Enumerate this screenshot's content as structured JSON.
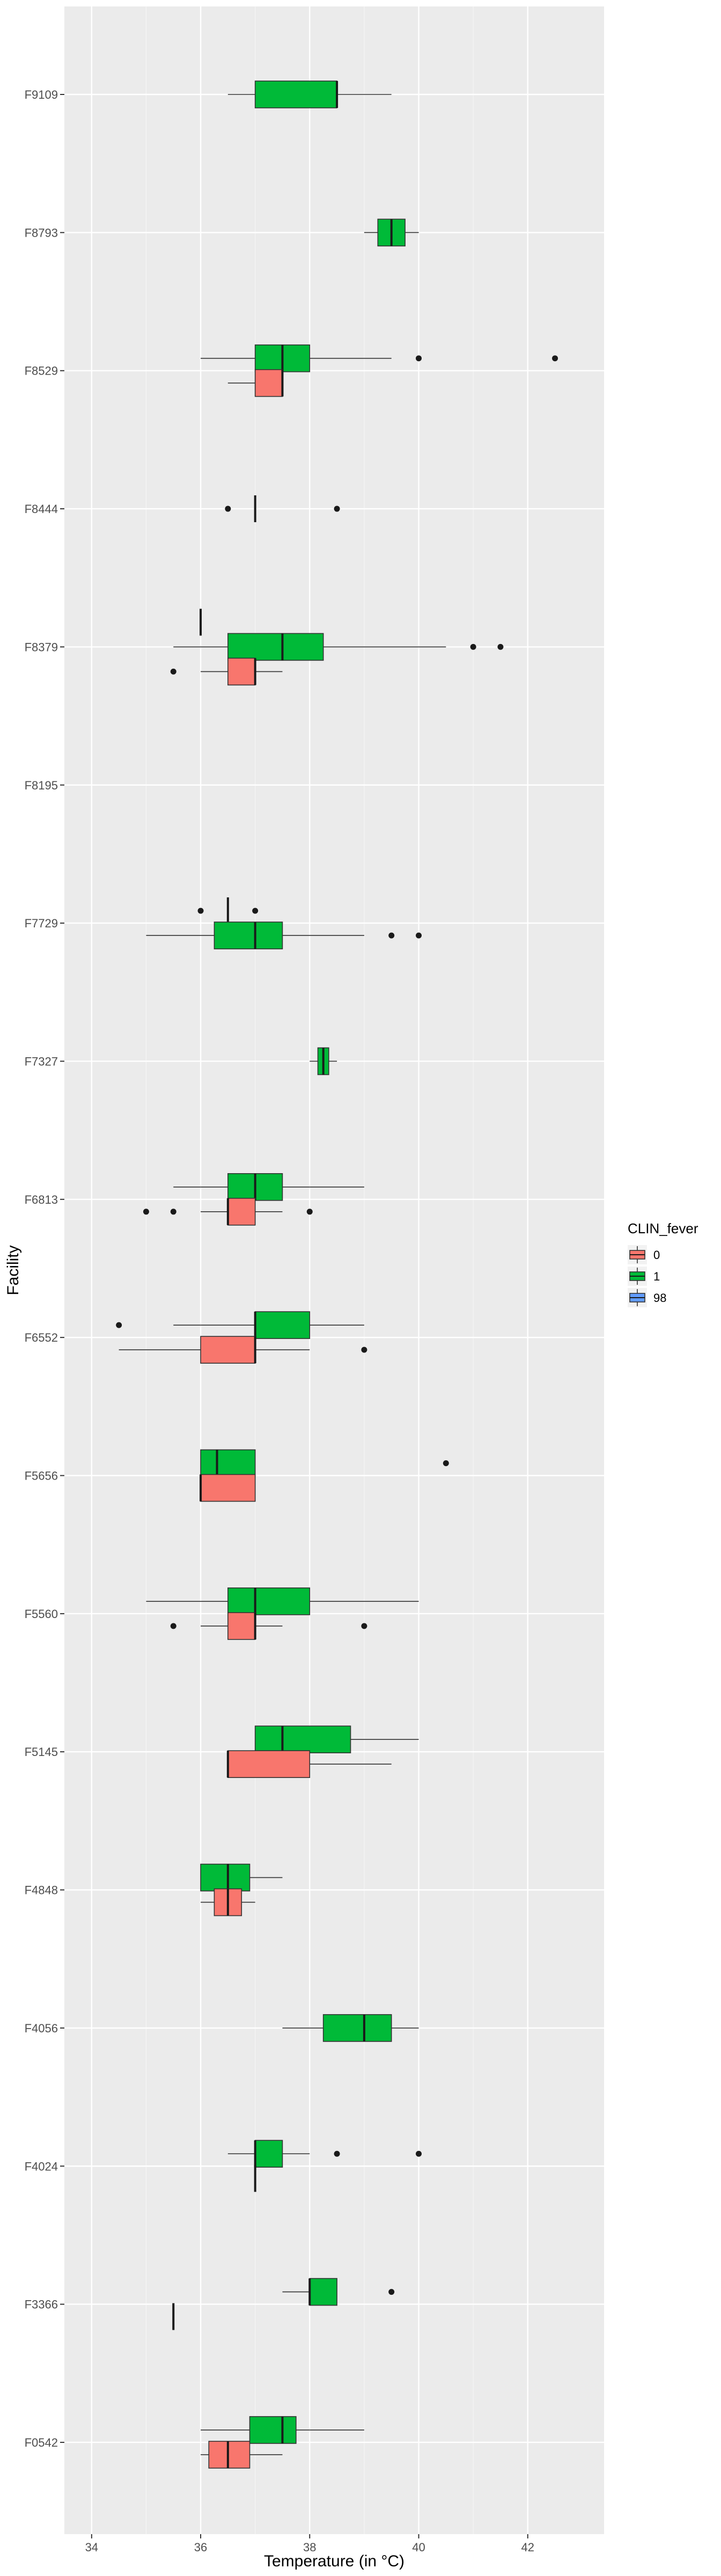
{
  "chart_data": {
    "type": "boxplot",
    "orientation": "horizontal",
    "xlabel": "Temperature (in °C)",
    "ylabel": "Facility",
    "xlim": [
      33.5,
      43.4
    ],
    "x_ticks": [
      34,
      36,
      38,
      40,
      42
    ],
    "categories": [
      "F9109",
      "F8793",
      "F8529",
      "F8444",
      "F8379",
      "F8195",
      "F7729",
      "F7327",
      "F6813",
      "F6552",
      "F5656",
      "F5560",
      "F5145",
      "F4848",
      "F4056",
      "F4024",
      "F3366",
      "F0542"
    ],
    "grid": true,
    "legend": {
      "title": "CLIN_fever",
      "position": "right",
      "items": [
        {
          "label": "0",
          "color": "#F8766D"
        },
        {
          "label": "1",
          "color": "#00BA38"
        },
        {
          "label": "98",
          "color": "#619CFF"
        }
      ]
    },
    "series": [
      {
        "name": "0",
        "color": "#F8766D",
        "boxes": [
          {
            "category": "F8529",
            "whisker_low": 36.5,
            "q1": 37.0,
            "median": 37.5,
            "q3": 37.5,
            "whisker_high": 37.5,
            "outliers": []
          },
          {
            "category": "F8379",
            "whisker_low": 36.0,
            "q1": 36.5,
            "median": 37.0,
            "q3": 37.0,
            "whisker_high": 37.5,
            "outliers": [
              35.5
            ]
          },
          {
            "category": "F6813",
            "whisker_low": 36.0,
            "q1": 36.5,
            "median": 36.5,
            "q3": 37.0,
            "whisker_high": 37.5,
            "outliers": [
              35.0,
              35.5,
              38.0
            ]
          },
          {
            "category": "F6552",
            "whisker_low": 34.5,
            "q1": 36.0,
            "median": 37.0,
            "q3": 37.0,
            "whisker_high": 38.0,
            "outliers": [
              39.0
            ]
          },
          {
            "category": "F5656",
            "whisker_low": 36.0,
            "q1": 36.0,
            "median": 36.0,
            "q3": 37.0,
            "whisker_high": 37.0,
            "outliers": []
          },
          {
            "category": "F5560",
            "whisker_low": 36.0,
            "q1": 36.5,
            "median": 37.0,
            "q3": 37.0,
            "whisker_high": 37.5,
            "outliers": [
              35.5,
              39.0
            ]
          },
          {
            "category": "F5145",
            "whisker_low": 36.5,
            "q1": 36.5,
            "median": 36.5,
            "q3": 38.0,
            "whisker_high": 39.5,
            "outliers": []
          },
          {
            "category": "F4848",
            "whisker_low": 36.0,
            "q1": 36.25,
            "median": 36.5,
            "q3": 36.75,
            "whisker_high": 37.0,
            "outliers": []
          },
          {
            "category": "F4024",
            "whisker_low": 37.0,
            "q1": 37.0,
            "median": 37.0,
            "q3": 37.0,
            "whisker_high": 37.0,
            "outliers": []
          },
          {
            "category": "F3366",
            "whisker_low": 35.5,
            "q1": 35.5,
            "median": 35.5,
            "q3": 35.5,
            "whisker_high": 35.5,
            "outliers": []
          },
          {
            "category": "F0542",
            "whisker_low": 36.0,
            "q1": 36.15,
            "median": 36.5,
            "q3": 36.9,
            "whisker_high": 37.5,
            "outliers": []
          }
        ]
      },
      {
        "name": "1",
        "color": "#00BA38",
        "boxes": [
          {
            "category": "F9109",
            "whisker_low": 36.5,
            "q1": 37.0,
            "median": 38.5,
            "q3": 38.5,
            "whisker_high": 39.5,
            "outliers": []
          },
          {
            "category": "F8793",
            "whisker_low": 39.0,
            "q1": 39.25,
            "median": 39.5,
            "q3": 39.75,
            "whisker_high": 40.0,
            "outliers": []
          },
          {
            "category": "F8529",
            "whisker_low": 36.0,
            "q1": 37.0,
            "median": 37.5,
            "q3": 38.0,
            "whisker_high": 39.5,
            "outliers": [
              40.0,
              42.5
            ]
          },
          {
            "category": "F8444",
            "whisker_low": 37.0,
            "q1": 37.0,
            "median": 37.0,
            "q3": 37.0,
            "whisker_high": 37.0,
            "outliers": [
              36.5,
              38.5
            ]
          },
          {
            "category": "F8379",
            "whisker_low": 35.5,
            "q1": 36.5,
            "median": 37.5,
            "q3": 38.25,
            "whisker_high": 40.5,
            "outliers": [
              41.0,
              41.5
            ]
          },
          {
            "category": "F7729",
            "whisker_low": 35.0,
            "q1": 36.25,
            "median": 37.0,
            "q3": 37.5,
            "whisker_high": 39.0,
            "outliers": [
              39.5,
              40.0
            ]
          },
          {
            "category": "F7327",
            "whisker_low": 38.0,
            "q1": 38.15,
            "median": 38.25,
            "q3": 38.35,
            "whisker_high": 38.5,
            "outliers": []
          },
          {
            "category": "F6813",
            "whisker_low": 35.5,
            "q1": 36.5,
            "median": 37.0,
            "q3": 37.5,
            "whisker_high": 39.0,
            "outliers": []
          },
          {
            "category": "F6552",
            "whisker_low": 35.5,
            "q1": 37.0,
            "median": 37.0,
            "q3": 38.0,
            "whisker_high": 39.0,
            "outliers": [
              34.5
            ]
          },
          {
            "category": "F5656",
            "whisker_low": 36.0,
            "q1": 36.0,
            "median": 36.3,
            "q3": 37.0,
            "whisker_high": 37.0,
            "outliers": [
              40.5
            ]
          },
          {
            "category": "F5560",
            "whisker_low": 35.0,
            "q1": 36.5,
            "median": 37.0,
            "q3": 38.0,
            "whisker_high": 40.0,
            "outliers": []
          },
          {
            "category": "F5145",
            "whisker_low": 37.0,
            "q1": 37.0,
            "median": 37.5,
            "q3": 38.75,
            "whisker_high": 40.0,
            "outliers": []
          },
          {
            "category": "F4848",
            "whisker_low": 36.0,
            "q1": 36.0,
            "median": 36.5,
            "q3": 36.9,
            "whisker_high": 37.5,
            "outliers": []
          },
          {
            "category": "F4056",
            "whisker_low": 37.5,
            "q1": 38.25,
            "median": 39.0,
            "q3": 39.5,
            "whisker_high": 40.0,
            "outliers": []
          },
          {
            "category": "F4024",
            "whisker_low": 36.5,
            "q1": 37.0,
            "median": 37.0,
            "q3": 37.5,
            "whisker_high": 38.0,
            "outliers": [
              38.5,
              40.0
            ]
          },
          {
            "category": "F3366",
            "whisker_low": 37.5,
            "q1": 38.0,
            "median": 38.0,
            "q3": 38.5,
            "whisker_high": 38.5,
            "outliers": [
              39.5
            ]
          },
          {
            "category": "F0542",
            "whisker_low": 36.0,
            "q1": 36.9,
            "median": 37.5,
            "q3": 37.75,
            "whisker_high": 39.0,
            "outliers": []
          }
        ]
      },
      {
        "name": "98",
        "color": "#619CFF",
        "boxes": [
          {
            "category": "F8379",
            "whisker_low": 36.0,
            "q1": 36.0,
            "median": 36.0,
            "q3": 36.0,
            "whisker_high": 36.0,
            "outliers": []
          },
          {
            "category": "F7729",
            "whisker_low": 36.5,
            "q1": 36.5,
            "median": 36.5,
            "q3": 36.5,
            "whisker_high": 36.5,
            "outliers": [
              36.0,
              37.0
            ]
          }
        ]
      }
    ]
  }
}
